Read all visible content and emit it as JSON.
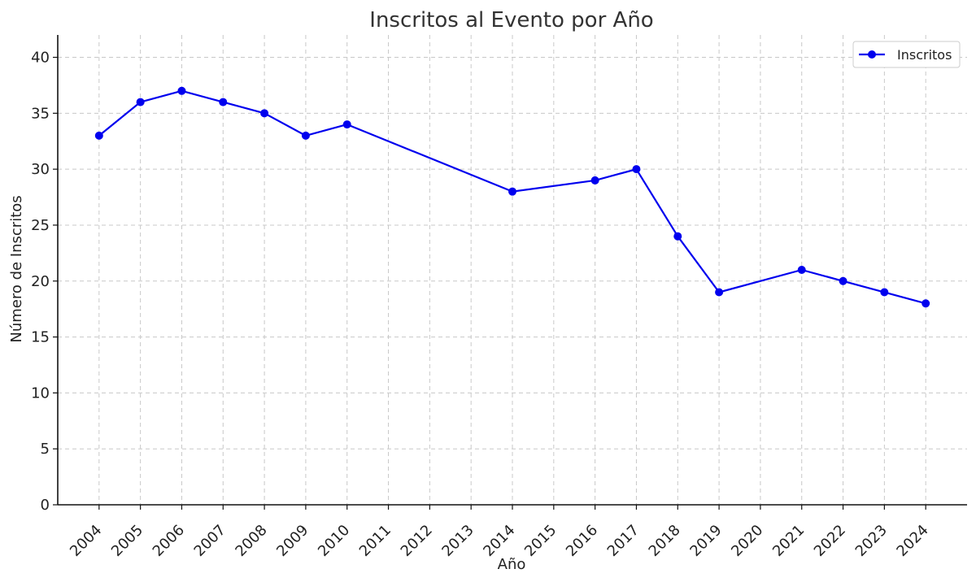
{
  "chart_data": {
    "type": "line",
    "title": "Inscritos al Evento por Año",
    "xlabel": "Año",
    "ylabel": "Número de Inscritos",
    "x_ticks": [
      2004,
      2005,
      2006,
      2007,
      2008,
      2009,
      2010,
      2011,
      2012,
      2013,
      2014,
      2015,
      2016,
      2017,
      2018,
      2019,
      2020,
      2021,
      2022,
      2023,
      2024
    ],
    "y_ticks": [
      0,
      5,
      10,
      15,
      20,
      25,
      30,
      35,
      40
    ],
    "xlim": [
      2003,
      2025
    ],
    "ylim": [
      0,
      42
    ],
    "grid": true,
    "legend_position": "top-right",
    "series": [
      {
        "name": "Inscritos",
        "color": "#0000ee",
        "marker": "circle",
        "points": [
          {
            "x": 2004,
            "y": 33
          },
          {
            "x": 2005,
            "y": 36
          },
          {
            "x": 2006,
            "y": 37
          },
          {
            "x": 2007,
            "y": 36
          },
          {
            "x": 2008,
            "y": 35
          },
          {
            "x": 2009,
            "y": 33
          },
          {
            "x": 2010,
            "y": 34
          },
          {
            "x": 2014,
            "y": 28
          },
          {
            "x": 2016,
            "y": 29
          },
          {
            "x": 2017,
            "y": 30
          },
          {
            "x": 2018,
            "y": 24
          },
          {
            "x": 2019,
            "y": 19
          },
          {
            "x": 2021,
            "y": 21
          },
          {
            "x": 2022,
            "y": 20
          },
          {
            "x": 2023,
            "y": 19
          },
          {
            "x": 2024,
            "y": 18
          }
        ]
      }
    ]
  }
}
